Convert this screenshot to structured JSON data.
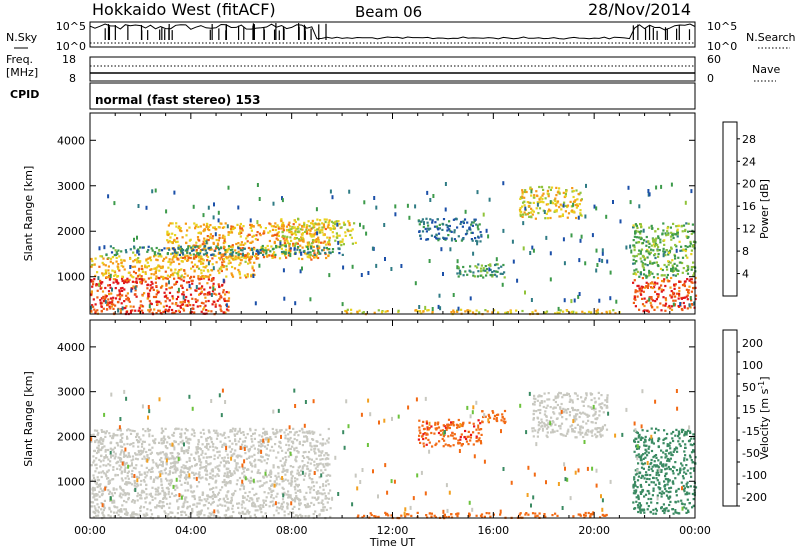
{
  "header": {
    "station": "Hokkaido West (fitACF)",
    "beam": "Beam 06",
    "date": "28/Nov/2014"
  },
  "top_panels": {
    "nsky_label": "N.Sky",
    "nsearch_label": "N.Search",
    "noise_ticks_left": [
      "10^5",
      "10^0"
    ],
    "noise_ticks_right": [
      "10^5",
      "10^0"
    ],
    "freq_label_line1": "Freq.",
    "freq_label_line2": "[MHz]",
    "freq_ticks": [
      "18",
      "8"
    ],
    "nave_label": "Nave",
    "nave_ticks": [
      "60",
      "0"
    ],
    "cpid_label": "CPID",
    "cpid_text": "normal (fast stereo) 153"
  },
  "chart_data": [
    {
      "type": "heatmap",
      "name": "power",
      "ylabel": "Slant Range [km]",
      "ylim": [
        180,
        4600
      ],
      "yticks": [
        1000,
        2000,
        3000,
        4000
      ],
      "xlim_hours": [
        0,
        24
      ],
      "colorbar": {
        "label": "Power [dB]",
        "ticks": [
          4,
          8,
          12,
          16,
          20,
          24,
          28
        ],
        "range": [
          0,
          31
        ],
        "colors": [
          "#1f1fe0",
          "#1b4fa8",
          "#2f7b84",
          "#3c9a4a",
          "#90c33a",
          "#e8d21f",
          "#f59a14",
          "#ef5a12",
          "#e0141a"
        ]
      },
      "regions": [
        {
          "t0": 0.0,
          "t1": 5.5,
          "r0": 200,
          "r1": 1000,
          "value": 27
        },
        {
          "t0": 0.0,
          "t1": 6.5,
          "r0": 1000,
          "r1": 1500,
          "value": 21
        },
        {
          "t0": 3.0,
          "t1": 9.5,
          "r0": 1400,
          "r1": 2200,
          "value": 22
        },
        {
          "t0": 7.5,
          "t1": 10.5,
          "r0": 1700,
          "r1": 2300,
          "value": 18
        },
        {
          "t0": 0.5,
          "t1": 10.0,
          "r0": 1500,
          "r1": 1700,
          "value": 10
        },
        {
          "t0": 13.0,
          "t1": 15.5,
          "r0": 1800,
          "r1": 2300,
          "value": 8
        },
        {
          "t0": 14.5,
          "t1": 16.5,
          "r0": 1000,
          "r1": 1300,
          "value": 12
        },
        {
          "t0": 17.0,
          "t1": 19.5,
          "r0": 2300,
          "r1": 3000,
          "value": 19
        },
        {
          "t0": 21.5,
          "t1": 24.0,
          "r0": 250,
          "r1": 1000,
          "value": 27
        },
        {
          "t0": 21.5,
          "t1": 24.0,
          "r0": 1000,
          "r1": 2200,
          "value": 14
        },
        {
          "t0": 10.0,
          "t1": 21.0,
          "r0": 200,
          "r1": 300,
          "value": 20
        }
      ]
    },
    {
      "type": "heatmap",
      "name": "velocity",
      "ylabel": "Slant Range [km]",
      "ylim": [
        180,
        4600
      ],
      "yticks": [
        1000,
        2000,
        3000,
        4000
      ],
      "xlim_hours": [
        0,
        24
      ],
      "xlabel": "Time UT",
      "xtick_labels": [
        "00:00",
        "04:00",
        "08:00",
        "12:00",
        "16:00",
        "20:00",
        "00:00"
      ],
      "colorbar": {
        "label": "Velocity [m s",
        "label_sup": "-1",
        "label_end": "]",
        "ticks": [
          200,
          100,
          50,
          15,
          -15,
          -50,
          -100,
          -200
        ],
        "colors": [
          "#1f2fd8",
          "#2c4fb0",
          "#3a8a62",
          "#6cc23c",
          "#c8c8c0",
          "#f2a020",
          "#f26a14",
          "#e8141a"
        ]
      },
      "regions": [
        {
          "t0": 0.0,
          "t1": 9.5,
          "r0": 200,
          "r1": 2200,
          "value": 0
        },
        {
          "t0": 13.0,
          "t1": 15.5,
          "r0": 1800,
          "r1": 2400,
          "value": -70
        },
        {
          "t0": 15.5,
          "t1": 16.5,
          "r0": 2300,
          "r1": 2600,
          "value": -40
        },
        {
          "t0": 17.5,
          "t1": 20.5,
          "r0": 2000,
          "r1": 3000,
          "value": 5
        },
        {
          "t0": 21.5,
          "t1": 24.0,
          "r0": 300,
          "r1": 2200,
          "value": 40
        },
        {
          "t0": 10.5,
          "t1": 20.5,
          "r0": 200,
          "r1": 320,
          "value": -40
        }
      ]
    }
  ]
}
